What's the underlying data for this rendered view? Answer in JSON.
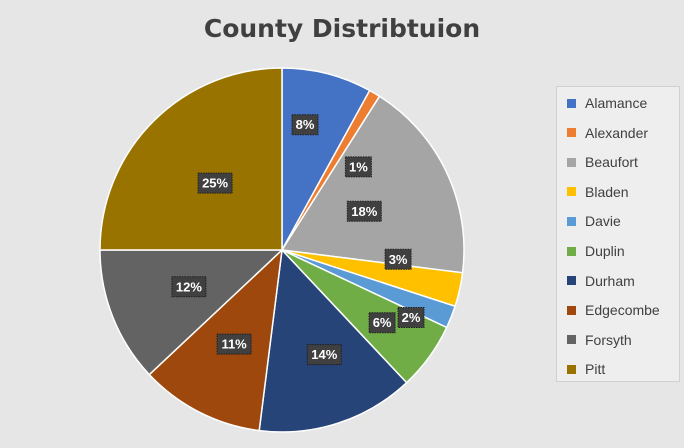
{
  "chart_data": {
    "type": "pie",
    "title": "County Distribtuion",
    "legend_position": "right",
    "start_angle_deg": 0,
    "direction": "clockwise",
    "categories": [
      "Alamance",
      "Alexander",
      "Beaufort",
      "Bladen",
      "Davie",
      "Duplin",
      "Durham",
      "Edgecombe",
      "Forsyth",
      "Pitt"
    ],
    "values": [
      8,
      1,
      18,
      3,
      2,
      6,
      14,
      11,
      12,
      25
    ],
    "labels": [
      "8%",
      "1%",
      "18%",
      "3%",
      "2%",
      "6%",
      "14%",
      "11%",
      "12%",
      "25%"
    ],
    "colors": [
      "#4472c4",
      "#ed7d31",
      "#a5a5a5",
      "#ffc000",
      "#5b9bd5",
      "#70ad47",
      "#264478",
      "#9e480e",
      "#636363",
      "#997300"
    ]
  }
}
